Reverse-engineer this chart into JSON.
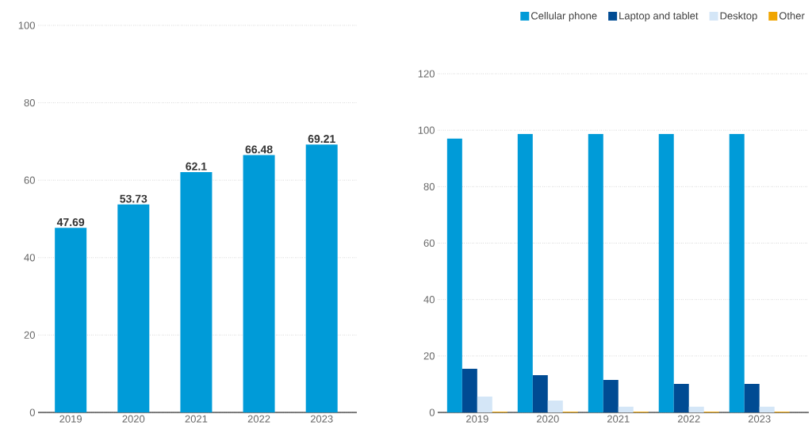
{
  "chart_data": [
    {
      "type": "bar",
      "categories": [
        "2019",
        "2020",
        "2021",
        "2022",
        "2023"
      ],
      "values": [
        47.69,
        53.73,
        62.1,
        66.48,
        69.21
      ],
      "color": "#009bd8",
      "ylim": [
        0,
        100
      ],
      "yticks": [
        0,
        20,
        40,
        60,
        80,
        100
      ],
      "grid": "y",
      "data_labels": true
    },
    {
      "type": "bar",
      "categories": [
        "2019",
        "2020",
        "2021",
        "2022",
        "2023"
      ],
      "series": [
        {
          "name": "Cellular phone",
          "color": "#009bd8",
          "values": [
            97.0,
            98.7,
            98.7,
            98.7,
            98.7
          ]
        },
        {
          "name": "Laptop and tablet",
          "color": "#004b93",
          "values": [
            15.5,
            13.2,
            11.5,
            10.1,
            10.1
          ]
        },
        {
          "name": "Desktop",
          "color": "#d4e6f7",
          "values": [
            5.6,
            4.2,
            2.0,
            2.0,
            2.0
          ]
        },
        {
          "name": "Other",
          "color": "#f0a500",
          "values": [
            0.3,
            0.3,
            0.3,
            0.3,
            0.3
          ]
        }
      ],
      "ylim": [
        0,
        120
      ],
      "yticks": [
        0,
        20,
        40,
        60,
        80,
        100,
        120
      ],
      "grid": "y",
      "legend": "top"
    }
  ]
}
